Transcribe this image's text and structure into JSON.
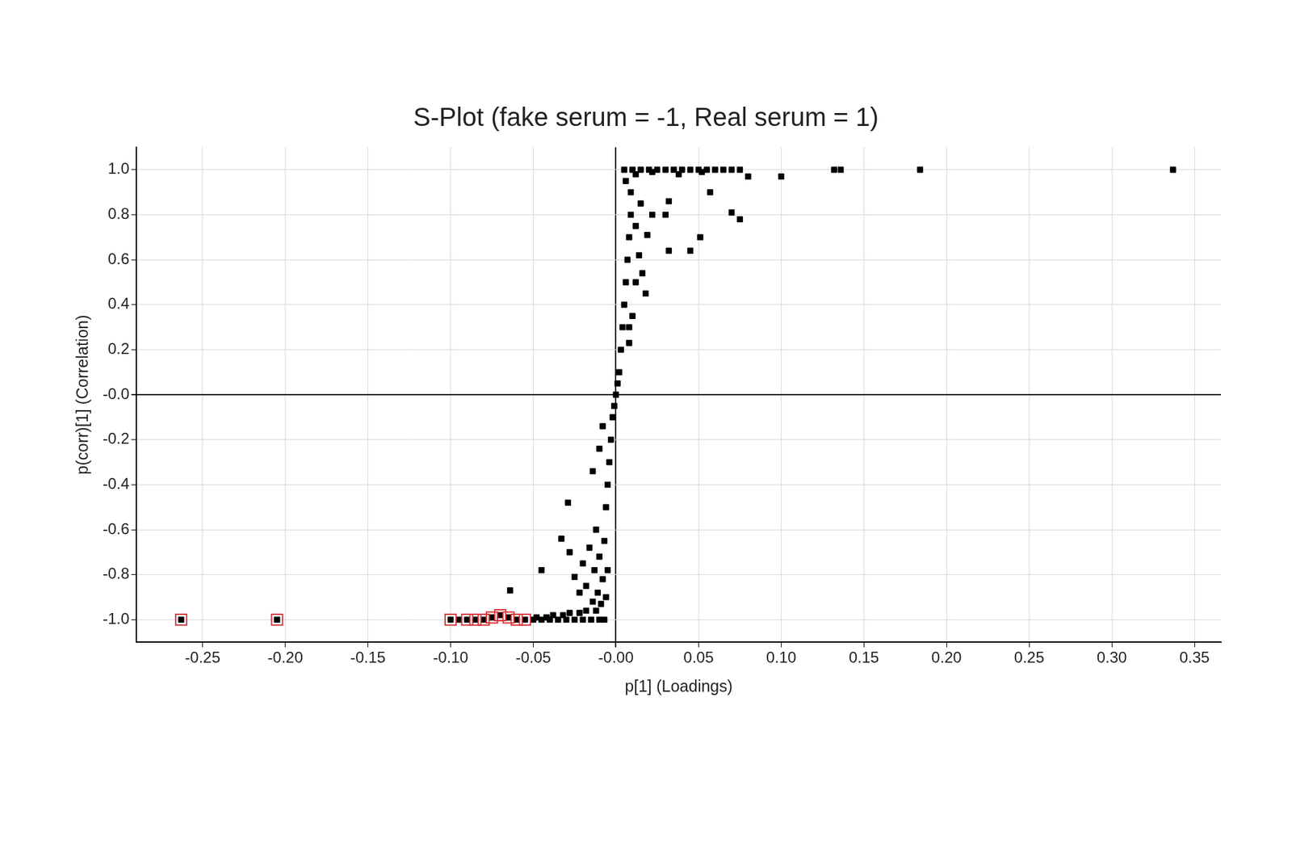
{
  "chart_data": {
    "type": "scatter",
    "title": "S-Plot (fake serum = -1, Real serum = 1)",
    "x_label": "p[1] (Loadings)",
    "y_label": "p(corr)[1] (Correlation)",
    "xlim": [
      -0.29,
      0.366
    ],
    "ylim": [
      -1.1,
      1.1
    ],
    "xticks": [
      {
        "value": -0.25,
        "label": "-0.25"
      },
      {
        "value": -0.2,
        "label": "-0.20"
      },
      {
        "value": -0.15,
        "label": "-0.15"
      },
      {
        "value": -0.1,
        "label": "-0.10"
      },
      {
        "value": -0.05,
        "label": "-0.05"
      },
      {
        "value": 0,
        "label": "-0.00"
      },
      {
        "value": 0.05,
        "label": "0.05"
      },
      {
        "value": 0.1,
        "label": "0.10"
      },
      {
        "value": 0.15,
        "label": "0.15"
      },
      {
        "value": 0.2,
        "label": "0.20"
      },
      {
        "value": 0.25,
        "label": "0.25"
      },
      {
        "value": 0.3,
        "label": "0.30"
      },
      {
        "value": 0.35,
        "label": "0.35"
      }
    ],
    "yticks": [
      {
        "value": -1,
        "label": "-1.0"
      },
      {
        "value": -0.8,
        "label": "-0.8"
      },
      {
        "value": -0.6,
        "label": "-0.6"
      },
      {
        "value": -0.4,
        "label": "-0.4"
      },
      {
        "value": -0.2,
        "label": "-0.2"
      },
      {
        "value": 0,
        "label": "-0.0"
      },
      {
        "value": 0.2,
        "label": "0.2"
      },
      {
        "value": 0.4,
        "label": "0.4"
      },
      {
        "value": 0.6,
        "label": "0.6"
      },
      {
        "value": 0.8,
        "label": "0.8"
      },
      {
        "value": 1,
        "label": "1.0"
      }
    ],
    "grid": true,
    "series": [
      {
        "color": "#000000",
        "marker": "square",
        "values": [
          [
            -0.263,
            -1.0
          ],
          [
            -0.205,
            -1.0
          ],
          [
            -0.1,
            -1.0
          ],
          [
            -0.095,
            -1.0
          ],
          [
            -0.09,
            -1.0
          ],
          [
            -0.085,
            -1.0
          ],
          [
            -0.08,
            -1.0
          ],
          [
            -0.075,
            -0.99
          ],
          [
            -0.07,
            -0.98
          ],
          [
            -0.065,
            -0.99
          ],
          [
            -0.06,
            -1.0
          ],
          [
            -0.055,
            -1.0
          ],
          [
            -0.05,
            -1.0
          ],
          [
            -0.045,
            -1.0
          ],
          [
            -0.04,
            -1.0
          ],
          [
            -0.035,
            -1.0
          ],
          [
            -0.03,
            -1.0
          ],
          [
            -0.025,
            -1.0
          ],
          [
            -0.02,
            -1.0
          ],
          [
            -0.015,
            -1.0
          ],
          [
            -0.01,
            -1.0
          ],
          [
            -0.007,
            -1.0
          ],
          [
            -0.048,
            -0.99
          ],
          [
            -0.042,
            -0.99
          ],
          [
            -0.038,
            -0.98
          ],
          [
            -0.032,
            -0.98
          ],
          [
            -0.028,
            -0.97
          ],
          [
            -0.022,
            -0.97
          ],
          [
            -0.018,
            -0.96
          ],
          [
            -0.012,
            -0.96
          ],
          [
            -0.064,
            -0.87
          ],
          [
            -0.045,
            -0.78
          ],
          [
            -0.033,
            -0.64
          ],
          [
            -0.029,
            -0.48
          ],
          [
            -0.028,
            -0.7
          ],
          [
            -0.025,
            -0.81
          ],
          [
            -0.022,
            -0.88
          ],
          [
            -0.02,
            -0.75
          ],
          [
            -0.018,
            -0.85
          ],
          [
            -0.016,
            -0.68
          ],
          [
            -0.014,
            -0.92
          ],
          [
            -0.013,
            -0.78
          ],
          [
            -0.012,
            -0.6
          ],
          [
            -0.011,
            -0.88
          ],
          [
            -0.01,
            -0.72
          ],
          [
            -0.009,
            -0.93
          ],
          [
            -0.008,
            -0.82
          ],
          [
            -0.007,
            -0.65
          ],
          [
            -0.006,
            -0.9
          ],
          [
            -0.005,
            -0.78
          ],
          [
            -0.014,
            -0.34
          ],
          [
            -0.01,
            -0.24
          ],
          [
            -0.008,
            -0.14
          ],
          [
            -0.006,
            -0.5
          ],
          [
            -0.005,
            -0.4
          ],
          [
            -0.004,
            -0.3
          ],
          [
            -0.003,
            -0.2
          ],
          [
            -0.002,
            -0.1
          ],
          [
            -0.001,
            -0.05
          ],
          [
            0,
            0
          ],
          [
            0.001,
            0.05
          ],
          [
            0.002,
            0.1
          ],
          [
            0.003,
            0.2
          ],
          [
            0.004,
            0.3
          ],
          [
            0.005,
            0.4
          ],
          [
            0.006,
            0.5
          ],
          [
            0.007,
            0.6
          ],
          [
            0.008,
            0.7
          ],
          [
            0.009,
            0.8
          ],
          [
            0.009,
            0.9
          ],
          [
            0.006,
            0.95
          ],
          [
            0.008,
            0.23
          ],
          [
            0.008,
            0.3
          ],
          [
            0.01,
            0.35
          ],
          [
            0.012,
            0.5
          ],
          [
            0.016,
            0.54
          ],
          [
            0.018,
            0.45
          ],
          [
            0.019,
            0.71
          ],
          [
            0.014,
            0.62
          ],
          [
            0.012,
            0.75
          ],
          [
            0.015,
            0.85
          ],
          [
            0.022,
            0.8
          ],
          [
            0.03,
            0.8
          ],
          [
            0.032,
            0.86
          ],
          [
            0.032,
            0.64
          ],
          [
            0.045,
            0.64
          ],
          [
            0.051,
            0.7
          ],
          [
            0.057,
            0.9
          ],
          [
            0.07,
            0.81
          ],
          [
            0.075,
            0.78
          ],
          [
            0.005,
            1.0
          ],
          [
            0.01,
            1.0
          ],
          [
            0.015,
            1.0
          ],
          [
            0.02,
            1.0
          ],
          [
            0.025,
            1.0
          ],
          [
            0.03,
            1.0
          ],
          [
            0.035,
            1.0
          ],
          [
            0.04,
            1.0
          ],
          [
            0.045,
            1.0
          ],
          [
            0.05,
            1.0
          ],
          [
            0.055,
            1.0
          ],
          [
            0.06,
            1.0
          ],
          [
            0.065,
            1.0
          ],
          [
            0.07,
            1.0
          ],
          [
            0.075,
            1.0
          ],
          [
            0.08,
            0.97
          ],
          [
            0.012,
            0.98
          ],
          [
            0.022,
            0.99
          ],
          [
            0.038,
            0.98
          ],
          [
            0.052,
            0.99
          ],
          [
            0.1,
            0.97
          ],
          [
            0.132,
            1.0
          ],
          [
            0.136,
            1.0
          ],
          [
            0.184,
            1.0
          ],
          [
            0.337,
            1.0
          ]
        ]
      },
      {
        "color": "#d9343a",
        "marker": "square_outline",
        "values": [
          [
            -0.263,
            -1.0
          ],
          [
            -0.205,
            -1.0
          ],
          [
            -0.1,
            -1.0
          ],
          [
            -0.09,
            -1.0
          ],
          [
            -0.085,
            -1.0
          ],
          [
            -0.08,
            -1.0
          ],
          [
            -0.075,
            -0.99
          ],
          [
            -0.07,
            -0.98
          ],
          [
            -0.065,
            -0.99
          ],
          [
            -0.06,
            -1.0
          ],
          [
            -0.055,
            -1.0
          ]
        ]
      }
    ]
  }
}
